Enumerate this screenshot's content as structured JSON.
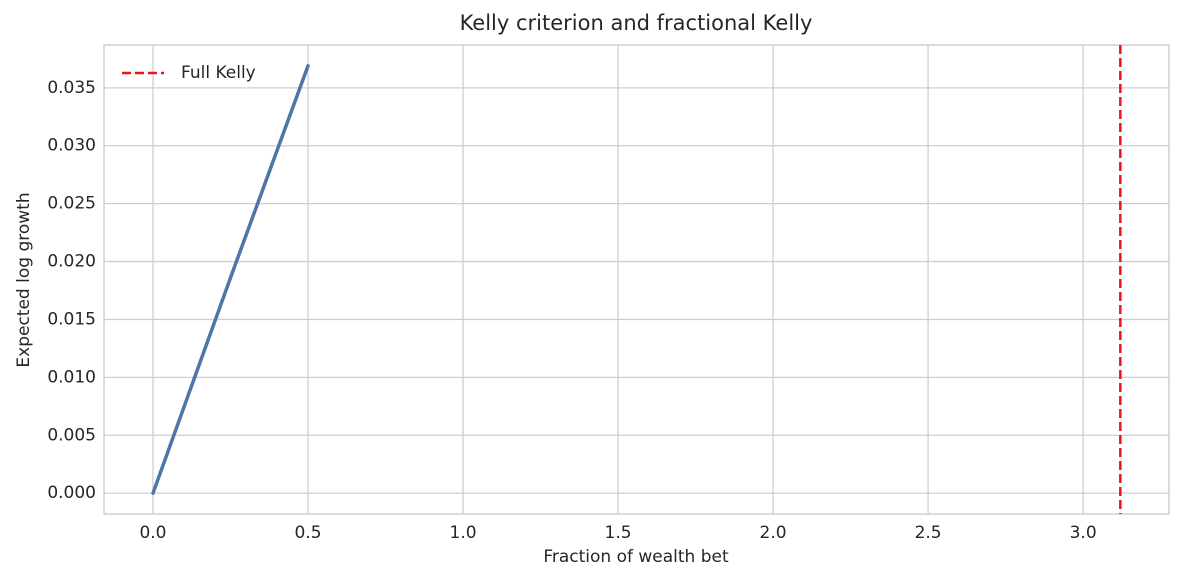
{
  "chart_data": {
    "type": "line",
    "title": "Kelly criterion and fractional Kelly",
    "xlabel": "Fraction of wealth bet",
    "ylabel": "Expected log growth",
    "series": [
      {
        "color": "#4c76a6",
        "x": [
          0,
          0.25,
          0.5
        ],
        "values": [
          0,
          0.0186,
          0.0369
        ]
      }
    ],
    "vlines": [
      {
        "x": 3.12,
        "label": "Full Kelly",
        "color": "#e8161a"
      }
    ],
    "xlim": [
      -0.158,
      3.277
    ],
    "ylim": [
      -0.0018,
      0.0387
    ],
    "xticks": [
      {
        "value": 0,
        "label": "0.0"
      },
      0.5,
      {
        "value": 1,
        "label": "1.0"
      },
      1.5,
      {
        "value": 2,
        "label": "2.0"
      },
      2.5,
      {
        "value": 3,
        "label": "3.0"
      }
    ],
    "yticks": [
      {
        "value": 0,
        "label": "0.000"
      },
      {
        "value": 0.005,
        "label": "0.005"
      },
      {
        "value": 0.01,
        "label": "0.010"
      },
      {
        "value": 0.015,
        "label": "0.015"
      },
      {
        "value": 0.02,
        "label": "0.020"
      },
      {
        "value": 0.025,
        "label": "0.025"
      },
      {
        "value": 0.03,
        "label": "0.030"
      },
      {
        "value": 0.035,
        "label": "0.035"
      }
    ],
    "grid": true,
    "legend": "upper-left"
  }
}
